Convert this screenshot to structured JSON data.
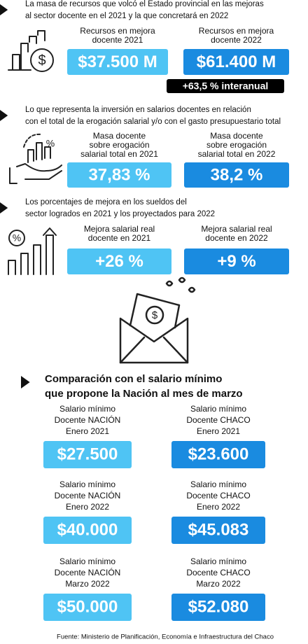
{
  "sections": [
    {
      "intro": [
        "La masa de recursos que volcó el Estado provincial en las mejoras",
        "al sector docente en el 2021 y la que concretará en 2022"
      ],
      "items": [
        {
          "label": [
            "Recursos en mejora",
            "docente 2021"
          ],
          "value": "$37.500 M"
        },
        {
          "label": [
            "Recursos en mejora",
            "docente 2022"
          ],
          "value": "$61.400 M"
        }
      ],
      "note": "+63,5 % interanual"
    },
    {
      "intro": [
        "Lo que representa la inversión en salarios docentes en relación",
        "con el total de la erogación salarial y/o con el gasto presupuestario total"
      ],
      "items": [
        {
          "label": [
            "Masa docente",
            "sobre erogación",
            "salarial total en 2021"
          ],
          "value": "37,83 %"
        },
        {
          "label": [
            "Masa docente",
            "sobre erogación",
            "salarial total en 2022"
          ],
          "value": "38,2 %"
        }
      ]
    },
    {
      "intro": [
        "Los porcentajes de mejora en los sueldos del",
        "sector logrados en 2021 y los proyectados para 2022"
      ],
      "items": [
        {
          "label": [
            "Mejora salarial real",
            "docente en 2021"
          ],
          "value": "+26 %"
        },
        {
          "label": [
            "Mejora salarial real",
            "docente en 2022"
          ],
          "value": "+9 %"
        }
      ]
    }
  ],
  "comparison": {
    "title": [
      "Comparación con el salario mínimo",
      "que propone la Nación al mes de marzo"
    ],
    "rows": [
      [
        {
          "label": [
            "Salario mínimo",
            "Docente NACIÓN",
            "Enero 2021"
          ],
          "value": "$27.500"
        },
        {
          "label": [
            "Salario mínimo",
            "Docente CHACO",
            "Enero 2021"
          ],
          "value": "$23.600"
        }
      ],
      [
        {
          "label": [
            "Salario mínimo",
            "Docente NACIÓN",
            "Enero 2022"
          ],
          "value": "$40.000"
        },
        {
          "label": [
            "Salario mínimo",
            "Docente CHACO",
            "Enero 2022"
          ],
          "value": "$45.083"
        }
      ],
      [
        {
          "label": [
            "Salario mínimo",
            "Docente NACIÓN",
            "Marzo 2022"
          ],
          "value": "$50.000"
        },
        {
          "label": [
            "Salario mínimo",
            "Docente CHACO",
            "Marzo 2022"
          ],
          "value": "$52.080"
        }
      ]
    ]
  },
  "source": "Fuente: Ministerio de Planificación, Economía e Infraestructura del Chaco"
}
